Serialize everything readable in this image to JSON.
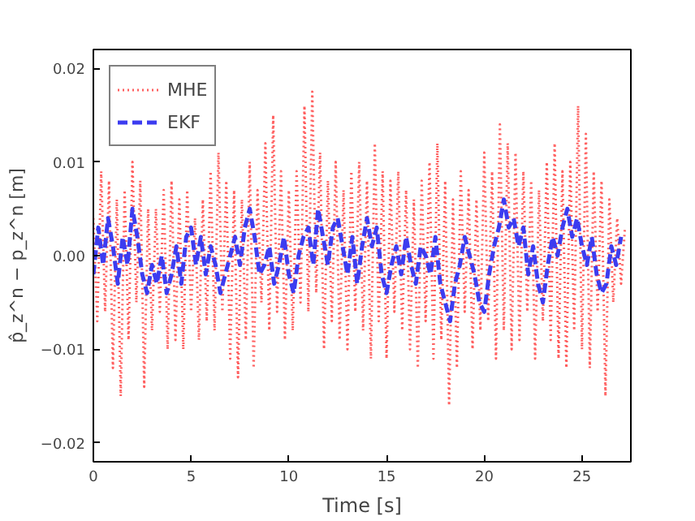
{
  "chart_data": {
    "type": "line",
    "xlabel": "Time [s]",
    "ylabel": "p̂_z^n − p_z^n [m]",
    "xlim": [
      0,
      27.5
    ],
    "ylim": [
      -0.022,
      0.022
    ],
    "xticks": [
      0,
      5,
      10,
      15,
      20,
      25
    ],
    "yticks": [
      {
        "value": -0.02,
        "label": "−0.02"
      },
      {
        "value": -0.01,
        "label": "−0.01"
      },
      {
        "value": 0,
        "label": "0.00"
      },
      {
        "value": 0.01,
        "label": "0.01"
      },
      {
        "value": 0.02,
        "label": "0.02"
      }
    ],
    "grid": false,
    "legend": "top left",
    "series": [
      {
        "name": "MHE",
        "color": "#ff6060",
        "line_style": "dotted",
        "x": [
          0,
          0.2,
          0.4,
          0.6,
          0.8,
          1,
          1.2,
          1.4,
          1.6,
          1.8,
          2,
          2.2,
          2.4,
          2.6,
          2.8,
          3,
          3.2,
          3.4,
          3.6,
          3.8,
          4,
          4.2,
          4.4,
          4.6,
          4.8,
          5,
          5.2,
          5.4,
          5.6,
          5.8,
          6,
          6.2,
          6.4,
          6.6,
          6.8,
          7,
          7.2,
          7.4,
          7.6,
          7.8,
          8,
          8.2,
          8.4,
          8.6,
          8.8,
          9,
          9.2,
          9.4,
          9.6,
          9.8,
          10,
          10.2,
          10.4,
          10.6,
          10.8,
          11,
          11.2,
          11.4,
          11.6,
          11.8,
          12,
          12.2,
          12.4,
          12.6,
          12.8,
          13,
          13.2,
          13.4,
          13.6,
          13.8,
          14,
          14.2,
          14.4,
          14.6,
          14.8,
          15,
          15.2,
          15.4,
          15.6,
          15.8,
          16,
          16.2,
          16.4,
          16.6,
          16.8,
          17,
          17.2,
          17.4,
          17.6,
          17.8,
          18,
          18.2,
          18.4,
          18.6,
          18.8,
          19,
          19.2,
          19.4,
          19.6,
          19.8,
          20,
          20.2,
          20.4,
          20.6,
          20.8,
          21,
          21.2,
          21.4,
          21.6,
          21.8,
          22,
          22.2,
          22.4,
          22.6,
          22.8,
          23,
          23.2,
          23.4,
          23.6,
          23.8,
          24,
          24.2,
          24.4,
          24.6,
          24.8,
          25,
          25.2,
          25.4,
          25.6,
          25.8,
          26,
          26.2,
          26.4,
          26.6,
          26.8,
          27,
          27.2
        ],
        "values": [
          0.004,
          -0.007,
          0.009,
          -0.006,
          0.008,
          -0.012,
          0.006,
          -0.015,
          0.007,
          -0.009,
          0.01,
          -0.005,
          0.008,
          -0.014,
          0.005,
          -0.008,
          0.005,
          -0.006,
          0.007,
          -0.01,
          0.008,
          -0.009,
          0.006,
          -0.01,
          0.007,
          -0.006,
          0.004,
          -0.009,
          0.006,
          -0.007,
          0.009,
          -0.008,
          0.011,
          -0.006,
          0.008,
          -0.011,
          0.007,
          -0.013,
          0.006,
          -0.009,
          0.01,
          -0.012,
          0.007,
          -0.005,
          0.012,
          -0.008,
          0.015,
          -0.006,
          0.009,
          -0.009,
          0.007,
          -0.008,
          0.009,
          -0.005,
          0.016,
          -0.006,
          0.0175,
          -0.004,
          0.011,
          -0.01,
          0.008,
          -0.007,
          0.01,
          -0.009,
          0.007,
          -0.01,
          0.009,
          -0.006,
          0.01,
          -0.008,
          0.008,
          -0.011,
          0.012,
          -0.007,
          0.009,
          -0.011,
          0.008,
          -0.006,
          0.009,
          -0.008,
          0.007,
          -0.01,
          0.006,
          -0.012,
          0.008,
          -0.007,
          0.01,
          -0.011,
          0.012,
          -0.009,
          0.008,
          -0.016,
          0.006,
          -0.012,
          0.009,
          -0.006,
          0.007,
          -0.01,
          0.006,
          -0.008,
          0.011,
          -0.007,
          0.009,
          -0.011,
          0.014,
          -0.008,
          0.012,
          -0.01,
          0.011,
          -0.009,
          0.009,
          -0.006,
          0.008,
          -0.011,
          0.007,
          -0.007,
          0.01,
          -0.009,
          0.012,
          -0.011,
          0.009,
          -0.012,
          0.01,
          -0.008,
          0.016,
          -0.01,
          0.013,
          -0.012,
          0.009,
          -0.006,
          0.008,
          -0.015,
          0.006,
          -0.005,
          0.004,
          -0.003,
          0.003
        ]
      },
      {
        "name": "EKF",
        "color": "#3c3cf0",
        "line_style": "dashed",
        "x": [
          0,
          0.25,
          0.5,
          0.75,
          1,
          1.25,
          1.5,
          1.75,
          2,
          2.25,
          2.5,
          2.75,
          3,
          3.25,
          3.5,
          3.75,
          4,
          4.25,
          4.5,
          4.75,
          5,
          5.25,
          5.5,
          5.75,
          6,
          6.25,
          6.5,
          6.75,
          7,
          7.25,
          7.5,
          7.75,
          8,
          8.25,
          8.5,
          8.75,
          9,
          9.25,
          9.5,
          9.75,
          10,
          10.25,
          10.5,
          10.75,
          11,
          11.25,
          11.5,
          11.75,
          12,
          12.25,
          12.5,
          12.75,
          13,
          13.25,
          13.5,
          13.75,
          14,
          14.25,
          14.5,
          14.75,
          15,
          15.25,
          15.5,
          15.75,
          16,
          16.25,
          16.5,
          16.75,
          17,
          17.25,
          17.5,
          17.75,
          18,
          18.25,
          18.5,
          18.75,
          19,
          19.25,
          19.5,
          19.75,
          20,
          20.25,
          20.5,
          20.75,
          21,
          21.25,
          21.5,
          21.75,
          22,
          22.25,
          22.5,
          22.75,
          23,
          23.25,
          23.5,
          23.75,
          24,
          24.25,
          24.5,
          24.75,
          25,
          25.25,
          25.5,
          25.75,
          26,
          26.25,
          26.5,
          26.75,
          27
        ],
        "values": [
          -0.002,
          0.003,
          -0.001,
          0.004,
          0.001,
          -0.003,
          0.002,
          -0.001,
          0.005,
          0.002,
          -0.002,
          -0.004,
          -0.001,
          -0.003,
          0.0,
          -0.004,
          -0.002,
          0.001,
          -0.003,
          0.002,
          0.003,
          -0.001,
          0.002,
          -0.002,
          0.001,
          -0.001,
          -0.004,
          -0.002,
          0.0,
          0.002,
          -0.001,
          0.003,
          0.005,
          0.002,
          -0.002,
          -0.001,
          0.001,
          -0.003,
          -0.001,
          0.002,
          -0.002,
          -0.004,
          0.0,
          0.002,
          0.003,
          -0.001,
          0.005,
          0.002,
          -0.001,
          0.003,
          0.004,
          0.001,
          -0.002,
          0.002,
          -0.003,
          0.001,
          0.004,
          0.001,
          0.003,
          -0.002,
          -0.004,
          -0.001,
          0.001,
          -0.002,
          0.002,
          -0.001,
          -0.003,
          0.001,
          0.0,
          -0.002,
          0.002,
          -0.003,
          -0.005,
          -0.007,
          -0.003,
          -0.001,
          0.002,
          0.0,
          -0.002,
          -0.005,
          -0.006,
          -0.002,
          0.001,
          0.003,
          0.006,
          0.003,
          0.004,
          0.001,
          0.003,
          -0.002,
          0.001,
          -0.003,
          -0.005,
          -0.001,
          0.002,
          0.0,
          0.003,
          0.005,
          0.002,
          0.004,
          0.001,
          -0.001,
          0.002,
          -0.002,
          -0.004,
          -0.003,
          0.001,
          -0.001,
          0.002
        ]
      }
    ]
  }
}
